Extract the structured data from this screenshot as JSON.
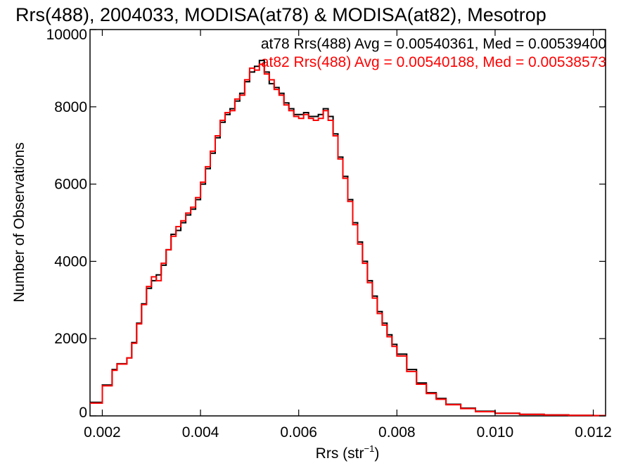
{
  "chart_data": {
    "type": "line",
    "step": true,
    "title": "Rrs(488), 2004033, MODISA(at78) & MODISA(at82), Mesotrop",
    "xlabel_base": "Rrs (str",
    "xlabel_sup": "−1",
    "xlabel_tail": ")",
    "ylabel": "Number of Observations",
    "xlim": [
      0.00175,
      0.01225
    ],
    "ylim": [
      0,
      10000
    ],
    "xticks": [
      0.002,
      0.004,
      0.006,
      0.008,
      0.01,
      0.012
    ],
    "xtick_labels": [
      "0.002",
      "0.004",
      "0.006",
      "0.008",
      "0.010",
      "0.012"
    ],
    "yticks": [
      0,
      2000,
      4000,
      6000,
      8000,
      10000
    ],
    "ytick_labels": [
      "0",
      "2000",
      "4000",
      "6000",
      "8000",
      "10000"
    ],
    "grid": false,
    "annotations": [
      {
        "text": "at78 Rrs(488) Avg = 0.00540361, Med = 0.00539400",
        "color": "#000000"
      },
      {
        "text": "at82 Rrs(488) Avg = 0.00540188, Med = 0.00538573",
        "color": "#ff0000"
      }
    ],
    "series": [
      {
        "color": "#000000",
        "x": [
          0.00175,
          0.002,
          0.0022,
          0.0023,
          0.0025,
          0.0026,
          0.0027,
          0.0028,
          0.0029,
          0.003,
          0.0031,
          0.0032,
          0.0033,
          0.0034,
          0.0035,
          0.0036,
          0.0037,
          0.0038,
          0.0039,
          0.004,
          0.0041,
          0.0042,
          0.0043,
          0.0044,
          0.0045,
          0.0046,
          0.0047,
          0.0048,
          0.0049,
          0.005,
          0.0051,
          0.0052,
          0.0053,
          0.0054,
          0.0055,
          0.0056,
          0.0057,
          0.0058,
          0.0059,
          0.006,
          0.0061,
          0.0062,
          0.0063,
          0.0064,
          0.0065,
          0.0066,
          0.0067,
          0.0068,
          0.0069,
          0.007,
          0.0071,
          0.0072,
          0.0073,
          0.0074,
          0.0075,
          0.0076,
          0.0077,
          0.0078,
          0.0079,
          0.008,
          0.0082,
          0.0084,
          0.0086,
          0.0088,
          0.009,
          0.0093,
          0.0096,
          0.01,
          0.0105,
          0.011,
          0.0115,
          0.012,
          0.01225
        ],
        "y": [
          350,
          800,
          1200,
          1350,
          1500,
          1900,
          2400,
          2900,
          3300,
          3500,
          3650,
          3900,
          4300,
          4700,
          4800,
          5000,
          5200,
          5350,
          5600,
          6000,
          6400,
          6800,
          7200,
          7600,
          7800,
          7950,
          8150,
          8350,
          8650,
          8900,
          9050,
          9200,
          8900,
          8600,
          8500,
          8350,
          8100,
          7950,
          7800,
          7800,
          7850,
          7750,
          7750,
          7800,
          7950,
          7750,
          7300,
          6700,
          6200,
          5600,
          5000,
          4500,
          4000,
          3500,
          3100,
          2700,
          2400,
          2100,
          1850,
          1600,
          1200,
          850,
          600,
          450,
          300,
          200,
          120,
          70,
          40,
          25,
          15,
          10,
          10
        ]
      },
      {
        "color": "#ff0000",
        "x": [
          0.00175,
          0.002,
          0.0022,
          0.0023,
          0.0025,
          0.0026,
          0.0027,
          0.0028,
          0.0029,
          0.003,
          0.0031,
          0.0032,
          0.0033,
          0.0034,
          0.0035,
          0.0036,
          0.0037,
          0.0038,
          0.0039,
          0.004,
          0.0041,
          0.0042,
          0.0043,
          0.0044,
          0.0045,
          0.0046,
          0.0047,
          0.0048,
          0.0049,
          0.005,
          0.0051,
          0.0052,
          0.0053,
          0.0054,
          0.0055,
          0.0056,
          0.0057,
          0.0058,
          0.0059,
          0.006,
          0.0061,
          0.0062,
          0.0063,
          0.0064,
          0.0065,
          0.0066,
          0.0067,
          0.0068,
          0.0069,
          0.007,
          0.0071,
          0.0072,
          0.0073,
          0.0074,
          0.0075,
          0.0076,
          0.0077,
          0.0078,
          0.0079,
          0.008,
          0.0082,
          0.0084,
          0.0086,
          0.0088,
          0.009,
          0.0093,
          0.0096,
          0.01,
          0.0105,
          0.011,
          0.0115,
          0.012,
          0.01225
        ],
        "y": [
          330,
          780,
          1180,
          1340,
          1500,
          1880,
          2380,
          2880,
          3350,
          3600,
          3500,
          3950,
          4300,
          4650,
          4900,
          5050,
          5250,
          5400,
          5650,
          6050,
          6450,
          6850,
          7250,
          7650,
          7850,
          7900,
          8200,
          8300,
          8700,
          9000,
          8950,
          9100,
          8850,
          8700,
          8450,
          8300,
          8050,
          7900,
          7750,
          7700,
          7800,
          7700,
          7650,
          7700,
          7900,
          7650,
          7250,
          6650,
          6150,
          5550,
          4950,
          4450,
          3950,
          3450,
          3050,
          2650,
          2350,
          2050,
          1800,
          1550,
          1150,
          820,
          580,
          430,
          290,
          190,
          110,
          65,
          38,
          22,
          14,
          9,
          9
        ]
      }
    ]
  }
}
